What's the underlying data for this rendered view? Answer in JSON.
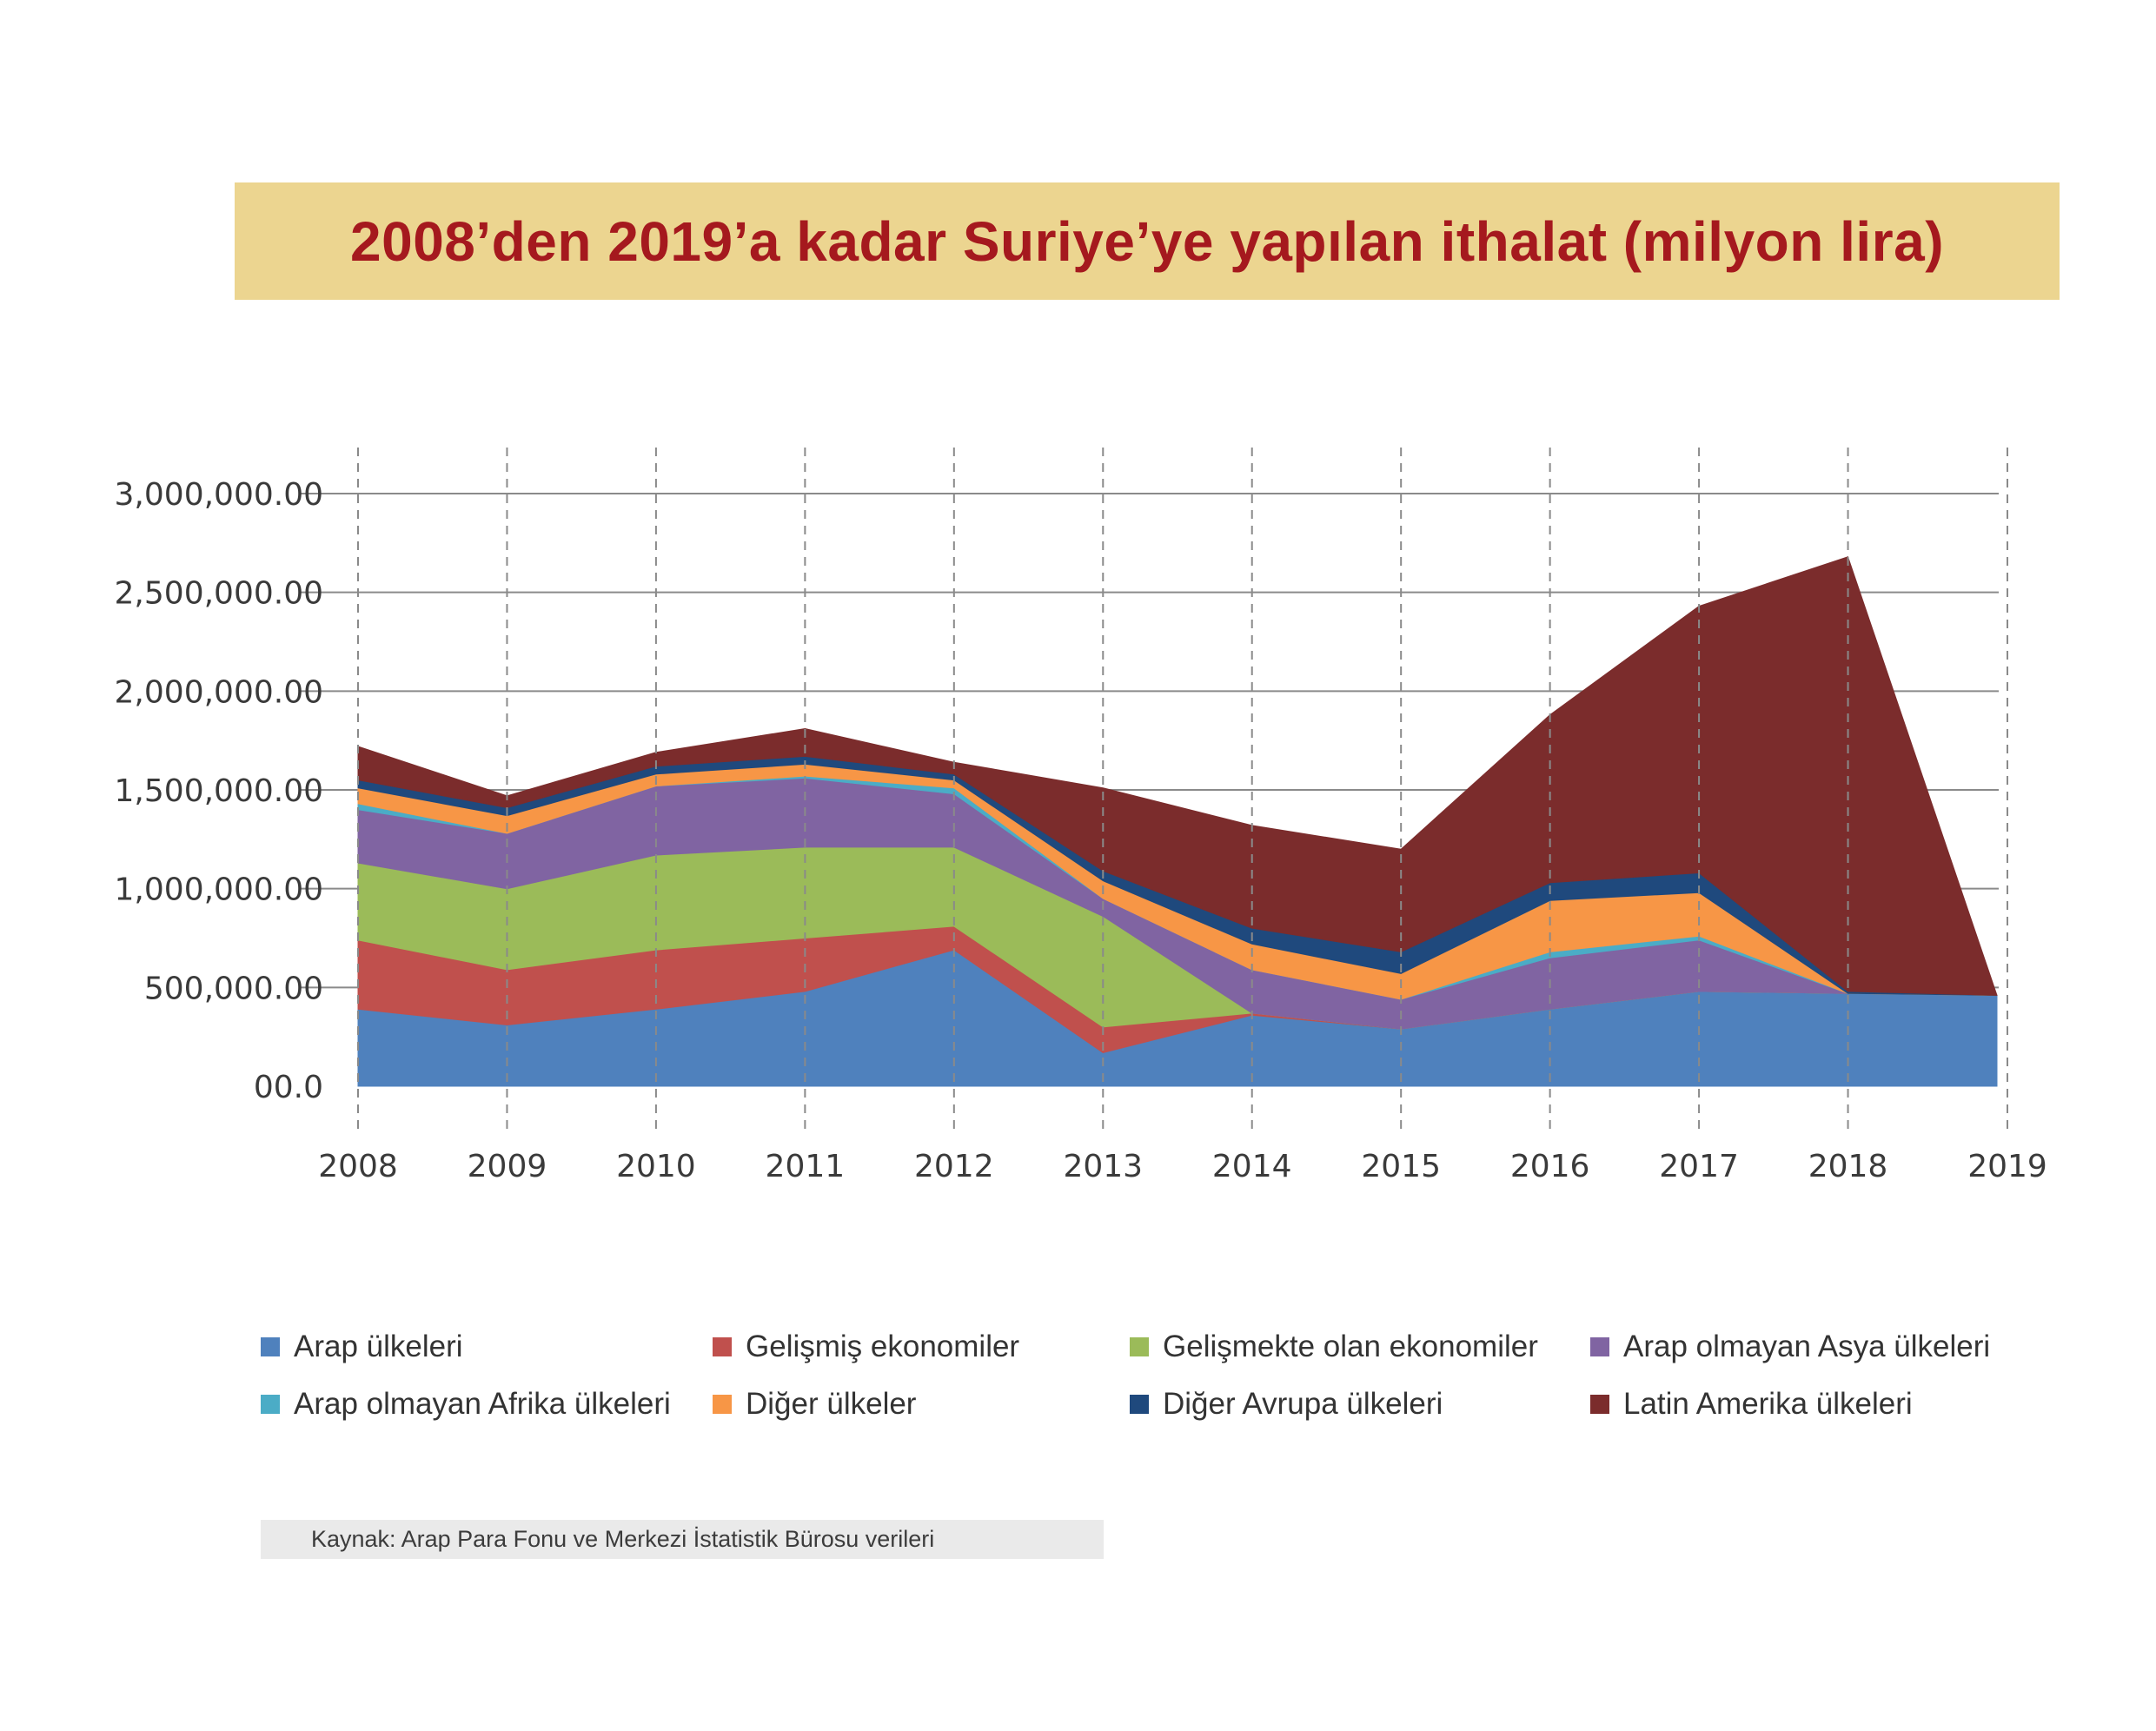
{
  "chart_data": {
    "type": "area",
    "stacked": true,
    "title": "2008’den 2019’a kadar Suriye’ye yapılan ithalat (milyon lira)",
    "xlabel": "",
    "ylabel": "",
    "x": [
      "2008",
      "2009",
      "2010",
      "2011",
      "2012",
      "2013",
      "2014",
      "2015",
      "2016",
      "2017",
      "2018",
      "2019"
    ],
    "ylim": [
      0,
      3000000
    ],
    "yticks": [
      0,
      500000,
      1000000,
      1500000,
      2000000,
      2500000,
      3000000
    ],
    "ytick_labels": [
      "00.0",
      "500,000.00",
      "1,000,000.00",
      "1,500,000.00",
      "2,000,000.00",
      "2,500,000.00",
      "3,000,000.00"
    ],
    "series": [
      {
        "name": "Arap ülkeleri",
        "color": "#4f81bd",
        "values": [
          390000,
          310000,
          390000,
          480000,
          690000,
          170000,
          360000,
          290000,
          390000,
          480000,
          470000,
          460000
        ]
      },
      {
        "name": "Gelişmiş ekonomiler",
        "color": "#c0504d",
        "values": [
          350000,
          280000,
          300000,
          270000,
          120000,
          130000,
          10000,
          0,
          0,
          0,
          0,
          0
        ]
      },
      {
        "name": "Gelişmekte olan ekonomiler",
        "color": "#9bbb59",
        "values": [
          390000,
          410000,
          480000,
          460000,
          400000,
          560000,
          0,
          0,
          0,
          0,
          0,
          0
        ]
      },
      {
        "name": "Arap olmayan Asya ülkeleri",
        "color": "#8064a2",
        "values": [
          270000,
          280000,
          350000,
          350000,
          270000,
          90000,
          220000,
          150000,
          260000,
          260000,
          0,
          0
        ]
      },
      {
        "name": "Arap olmayan Afrika ülkeleri",
        "color": "#4bacc6",
        "values": [
          30000,
          0,
          0,
          10000,
          30000,
          0,
          0,
          0,
          30000,
          20000,
          0,
          0
        ]
      },
      {
        "name": "Diğer ülkeler",
        "color": "#f79646",
        "values": [
          80000,
          90000,
          60000,
          60000,
          40000,
          90000,
          130000,
          130000,
          260000,
          220000,
          0,
          0
        ]
      },
      {
        "name": "Diğer Avrupa ülkeleri",
        "color": "#1f497d",
        "values": [
          40000,
          40000,
          40000,
          40000,
          30000,
          50000,
          80000,
          110000,
          90000,
          100000,
          10000,
          0
        ]
      },
      {
        "name": "Latin Amerika ülkeleri",
        "color": "#7b2c2c",
        "values": [
          170000,
          60000,
          70000,
          140000,
          60000,
          420000,
          520000,
          520000,
          850000,
          1350000,
          2200000,
          0
        ]
      }
    ],
    "grid": true,
    "legend_position": "bottom"
  },
  "source_note": "Kaynak: Arap Para Fonu ve Merkezi İstatistik Bürosu verileri"
}
